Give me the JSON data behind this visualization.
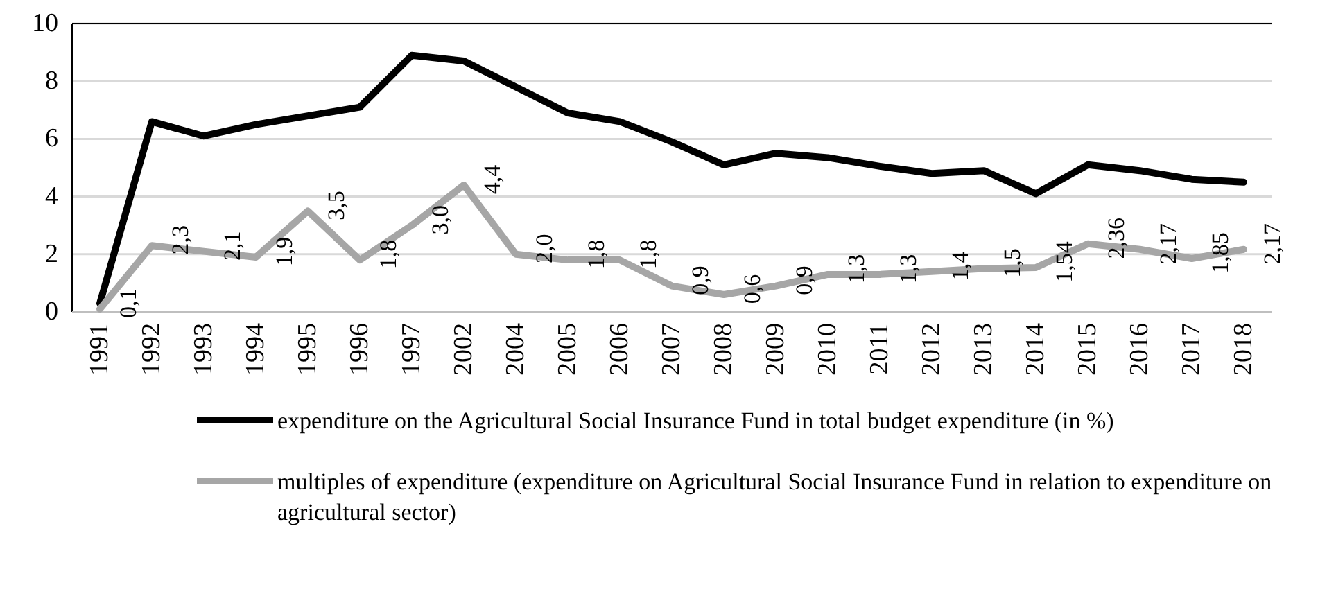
{
  "chart_data": {
    "type": "line",
    "categories": [
      "1991",
      "1992",
      "1993",
      "1994",
      "1995",
      "1996",
      "1997",
      "2002",
      "2004",
      "2005",
      "2006",
      "2007",
      "2008",
      "2009",
      "2010",
      "2011",
      "2012",
      "2013",
      "2014",
      "2015",
      "2016",
      "2017",
      "2018"
    ],
    "series": [
      {
        "name": "expenditure on the Agricultural Social Insurance Fund in total budget expenditure (in %)",
        "color": "#000000",
        "values": [
          0.3,
          6.6,
          6.1,
          6.5,
          6.8,
          7.1,
          8.9,
          8.7,
          7.8,
          6.9,
          6.6,
          5.9,
          5.1,
          5.5,
          5.35,
          5.05,
          4.8,
          4.9,
          4.1,
          5.1,
          4.9,
          4.6,
          4.5
        ]
      },
      {
        "name": "multiples of expenditure (expenditure on Agricultural Social Insurance Fund in relation to expenditure on agricultural sector)",
        "color": "#a6a6a6",
        "values": [
          0.1,
          2.3,
          2.1,
          1.9,
          3.5,
          1.8,
          3.0,
          4.4,
          2.0,
          1.8,
          1.8,
          0.9,
          0.6,
          0.9,
          1.3,
          1.3,
          1.4,
          1.5,
          1.54,
          2.36,
          2.17,
          1.85,
          2.17
        ],
        "value_labels": [
          "0,1",
          "2,3",
          "2,1",
          "1,9",
          "3,5",
          "1,8",
          "3,0",
          "4,4",
          "2,0",
          "1,8",
          "1,8",
          "0,9",
          "0,6",
          "0,9",
          "1,3",
          "1,3",
          "1,4",
          "1,5",
          "1,54",
          "2,36",
          "2,17",
          "1,85",
          "2,17"
        ]
      }
    ],
    "ylim": [
      0,
      10
    ],
    "yticks": [
      0,
      2,
      4,
      6,
      8,
      10
    ],
    "grid": "y",
    "legend": "bottom",
    "marker": "none",
    "line_style": "solid"
  }
}
